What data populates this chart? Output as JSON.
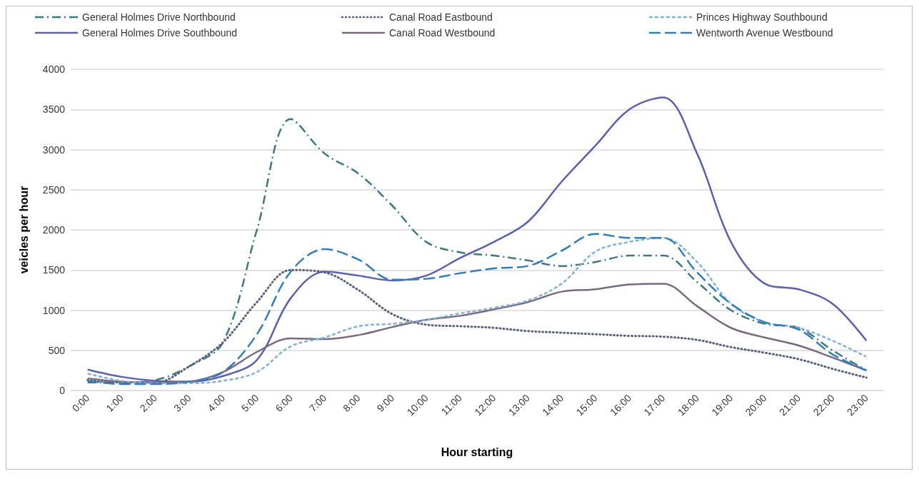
{
  "chart_data": {
    "type": "line",
    "xlabel": "Hour starting",
    "ylabel": "veicles per hour",
    "categories": [
      "0:00",
      "1:00",
      "2:00",
      "3:00",
      "4:00",
      "5:00",
      "6:00",
      "7:00",
      "8:00",
      "9:00",
      "10:00",
      "11:00",
      "12:00",
      "13:00",
      "14:00",
      "15:00",
      "16:00",
      "17:00",
      "18:00",
      "19:00",
      "20:00",
      "21:00",
      "22:00",
      "23:00"
    ],
    "ylim": [
      0,
      4000
    ],
    "yticks": [
      0,
      500,
      1000,
      1500,
      2000,
      2500,
      3000,
      3500,
      4000
    ],
    "grid": "y",
    "legend": "top",
    "marker": "none",
    "series": [
      {
        "name": "General Holmes Drive Northbound",
        "color": "#3a7a80",
        "line_style": "dashdot",
        "values": [
          100,
          100,
          130,
          300,
          600,
          2000,
          3380,
          2950,
          2700,
          2300,
          1850,
          1720,
          1680,
          1620,
          1550,
          1600,
          1680,
          1680,
          1350,
          1000,
          830,
          780,
          500,
          250
        ]
      },
      {
        "name": "General Holmes Drive Southbound",
        "color": "#5b5fb5",
        "line_style": "solid",
        "values": [
          260,
          170,
          120,
          110,
          180,
          380,
          1150,
          1480,
          1430,
          1370,
          1430,
          1650,
          1850,
          2100,
          2600,
          3050,
          3500,
          3650,
          2950,
          1850,
          1330,
          1260,
          1080,
          620
        ]
      },
      {
        "name": "Canal Road Eastbound",
        "color": "#5a6080",
        "line_style": "dotted",
        "values": [
          130,
          100,
          100,
          300,
          600,
          1100,
          1500,
          1470,
          1250,
          950,
          820,
          800,
          780,
          740,
          720,
          700,
          680,
          670,
          630,
          540,
          470,
          390,
          270,
          160
        ]
      },
      {
        "name": "Canal Road Westbound",
        "color": "#7a6a80",
        "line_style": "solid",
        "values": [
          150,
          110,
          100,
          110,
          230,
          480,
          650,
          640,
          690,
          790,
          880,
          930,
          1010,
          1100,
          1230,
          1260,
          1320,
          1330,
          1050,
          780,
          660,
          560,
          410,
          250
        ]
      },
      {
        "name": "Princes Highway Southbound",
        "color": "#7fb0e0",
        "line_style": "dashed",
        "values": [
          210,
          120,
          90,
          90,
          120,
          230,
          550,
          660,
          800,
          830,
          880,
          960,
          1030,
          1120,
          1330,
          1730,
          1850,
          1900,
          1600,
          1080,
          850,
          780,
          620,
          420
        ]
      },
      {
        "name": "Wentworth Avenue Westbound",
        "color": "#2e7fc2",
        "line_style": "longdash",
        "values": [
          120,
          80,
          80,
          110,
          230,
          700,
          1480,
          1760,
          1630,
          1380,
          1390,
          1460,
          1520,
          1550,
          1740,
          1950,
          1900,
          1900,
          1470,
          1080,
          850,
          760,
          450,
          250
        ]
      }
    ]
  }
}
